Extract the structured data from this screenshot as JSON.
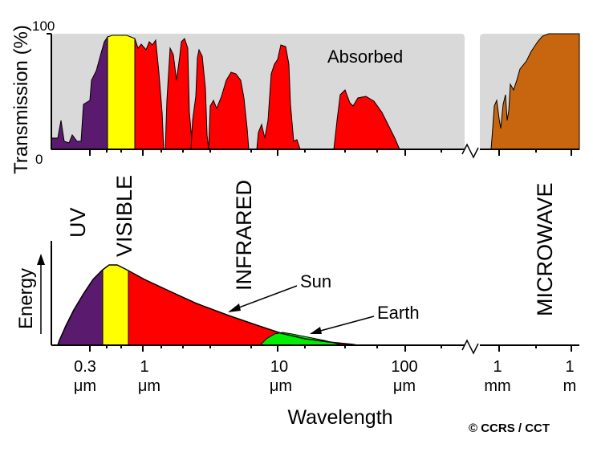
{
  "transmission_panel": {
    "y_axis_label": "Transmission (%)",
    "y_top_tick": "100",
    "y_bottom_tick": "0",
    "absorbed_label": "Absorbed",
    "colors": {
      "background": "#d9d9d9",
      "uv": "#5a1a6e",
      "visible": "#ffff00",
      "infrared": "#ff0000",
      "microwave": "#c8650f"
    }
  },
  "band_labels": {
    "uv": "UV",
    "visible": "VISIBLE",
    "infrared": "INFRARED",
    "microwave": "MICROWAVE"
  },
  "energy_panel": {
    "y_axis_label": "Energy",
    "sun_label": "Sun",
    "earth_label": "Earth",
    "colors": {
      "sun_ir": "#ff0000",
      "earth": "#00ee00"
    }
  },
  "x_axis": {
    "title": "Wavelength",
    "ticks": [
      {
        "value": "0.3",
        "unit": "μm"
      },
      {
        "value": "1",
        "unit": "μm"
      },
      {
        "value": "10",
        "unit": "μm"
      },
      {
        "value": "100",
        "unit": "μm"
      },
      {
        "value": "1",
        "unit": "mm"
      },
      {
        "value": "1",
        "unit": "m"
      }
    ]
  },
  "credit": "© CCRS / CCT"
}
